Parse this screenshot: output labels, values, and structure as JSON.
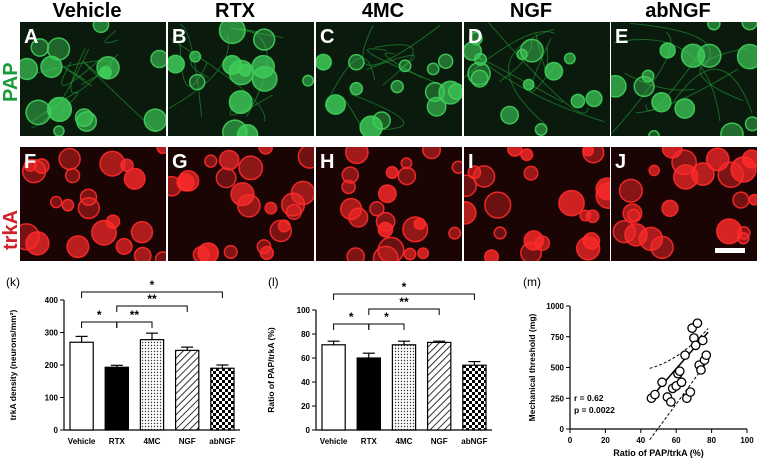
{
  "columns": [
    "Vehicle",
    "RTX",
    "4MC",
    "NGF",
    "abNGF"
  ],
  "rows": [
    {
      "label": "PAP",
      "color": "#1a9a3a",
      "panels": [
        "A",
        "B",
        "C",
        "D",
        "E"
      ]
    },
    {
      "label": "trkA",
      "color": "#d0202a",
      "panels": [
        "F",
        "G",
        "H",
        "I",
        "J"
      ]
    }
  ],
  "colors": {
    "green_cell": "#3fcf5a",
    "green_bg": "#0a1a0c",
    "red_cell": "#ff2a2a",
    "red_bg": "#1a0404"
  },
  "chart_data": [
    {
      "panel_label": "(k)",
      "type": "bar",
      "categories": [
        "Vehicle",
        "RTX",
        "4MC",
        "NGF",
        "abNGF"
      ],
      "values": [
        270,
        193,
        278,
        245,
        190
      ],
      "errors": [
        18,
        6,
        20,
        10,
        10
      ],
      "patterns": [
        "white",
        "black",
        "dots",
        "hatch",
        "checker"
      ],
      "ylabel": "trkA density (neurons/mm²)",
      "ylim": [
        0,
        400
      ],
      "yticks": [
        "0",
        "100",
        "200",
        "300",
        "400"
      ],
      "significance": [
        {
          "from": 0,
          "to": 1,
          "label": "*",
          "level": 0
        },
        {
          "from": 1,
          "to": 2,
          "label": "**",
          "level": 0
        },
        {
          "from": 1,
          "to": 3,
          "label": "**",
          "level": 1
        },
        {
          "from": 0,
          "to": 4,
          "label": "*",
          "level": 2
        }
      ]
    },
    {
      "panel_label": "(l)",
      "type": "bar",
      "categories": [
        "Vehicle",
        "RTX",
        "4MC",
        "NGF",
        "abNGF"
      ],
      "values": [
        71,
        60,
        71,
        73,
        54
      ],
      "errors": [
        3,
        4,
        3,
        1,
        3
      ],
      "patterns": [
        "white",
        "black",
        "dots",
        "hatch",
        "checker"
      ],
      "ylabel": "Ratio of PAP/trkA (%)",
      "ylim": [
        0,
        100
      ],
      "yticks": [
        "0",
        "20",
        "40",
        "60",
        "80",
        "100"
      ],
      "significance": [
        {
          "from": 0,
          "to": 1,
          "label": "*",
          "level": 0
        },
        {
          "from": 1,
          "to": 2,
          "label": "*",
          "level": 0
        },
        {
          "from": 1,
          "to": 3,
          "label": "**",
          "level": 1
        },
        {
          "from": 0,
          "to": 4,
          "label": "*",
          "level": 2
        }
      ]
    },
    {
      "panel_label": "(m)",
      "type": "scatter",
      "x": [
        46,
        48,
        52,
        55,
        57,
        58,
        60,
        61,
        62,
        63,
        65,
        66,
        68,
        69,
        70,
        71,
        72,
        73,
        74,
        75,
        76,
        77
      ],
      "y": [
        250,
        280,
        380,
        260,
        220,
        330,
        350,
        450,
        470,
        380,
        600,
        250,
        300,
        820,
        740,
        680,
        860,
        520,
        480,
        720,
        560,
        600
      ],
      "xlabel": "Ratio of PAP/trkA (%)",
      "ylabel": "Mechanical threshold (mg)",
      "xlim": [
        0,
        100
      ],
      "ylim": [
        0,
        1000
      ],
      "xticks": [
        "0",
        "20",
        "40",
        "60",
        "80",
        "100"
      ],
      "yticks": [
        "0",
        "250",
        "500",
        "750",
        "1000"
      ],
      "annotation": [
        "r = 0.62",
        "p = 0.0022"
      ],
      "fit": {
        "slope": 16.5,
        "intercept": -500,
        "xmin": 45,
        "xmax": 78
      }
    }
  ]
}
